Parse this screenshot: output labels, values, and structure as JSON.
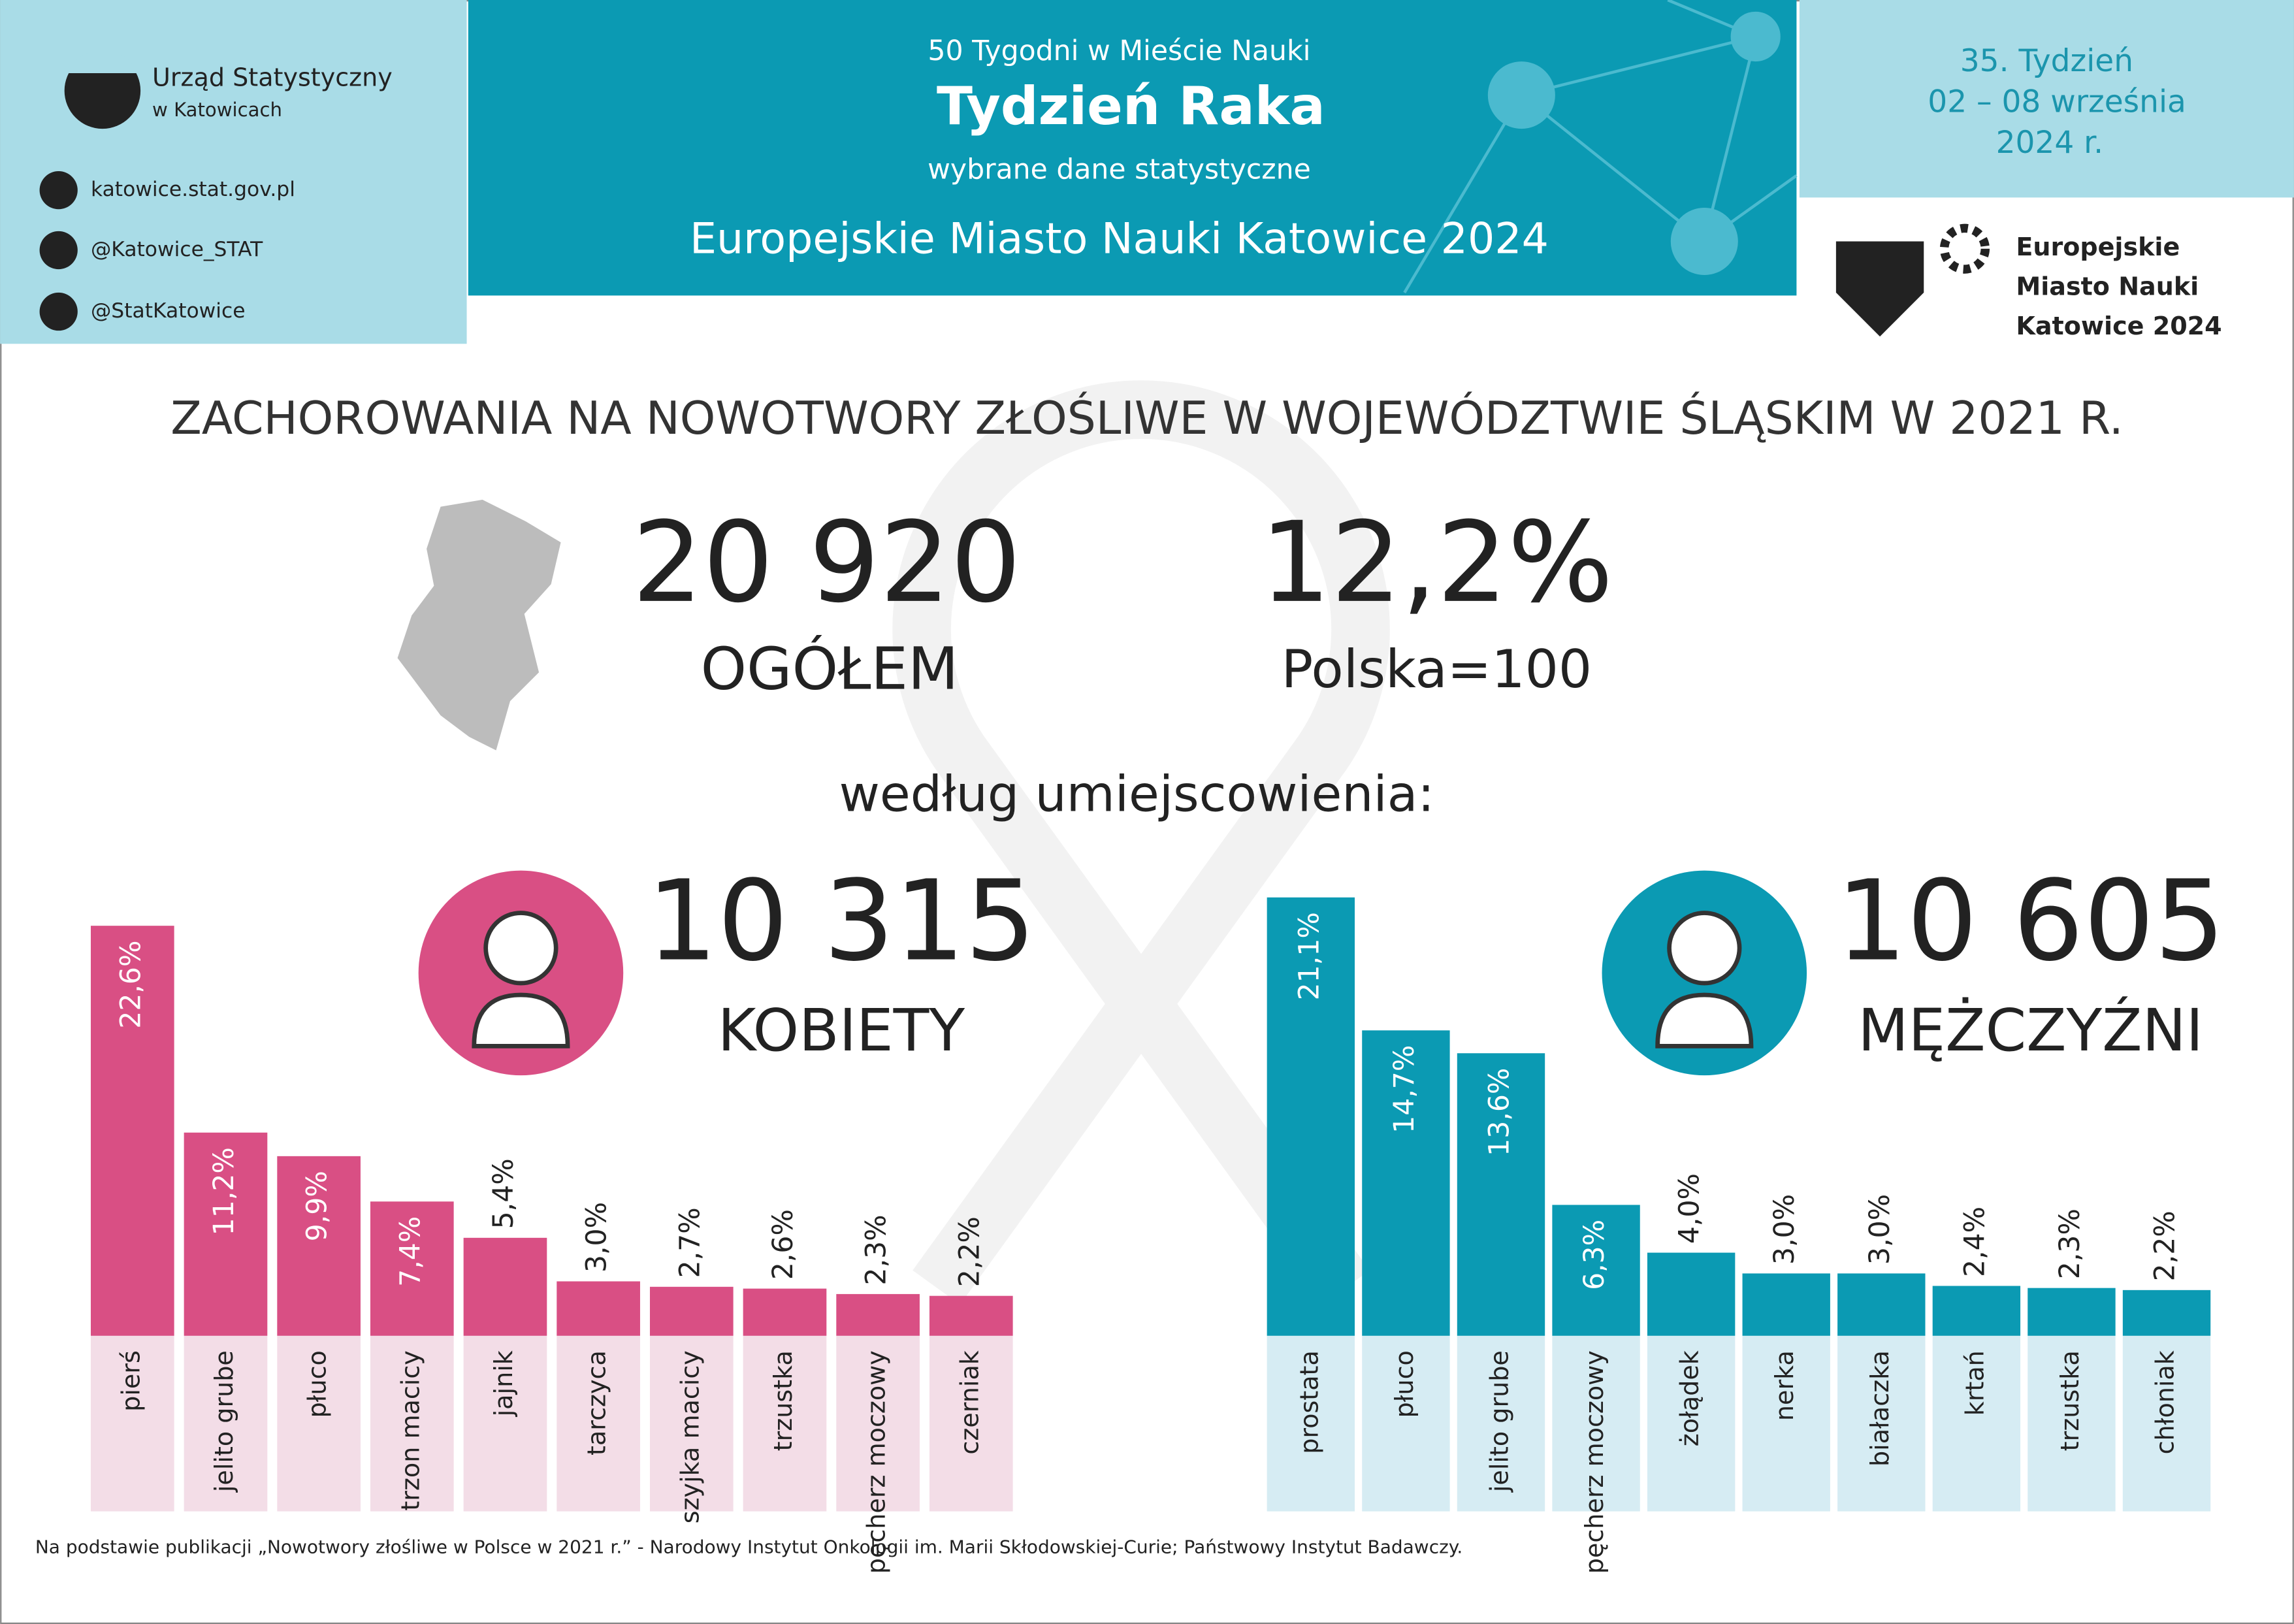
{
  "header": {
    "org": "Urząd Statystyczny",
    "org_sub": "w Katowicach",
    "links": [
      "katowice.stat.gov.pl",
      "@Katowice_STAT",
      "@StatKatowice"
    ],
    "series_title": "50 Tygodni w Mieście Nauki",
    "title": "Tydzień Raka",
    "subtitle": "wybrane dane statystyczne",
    "event": "Europejskie Miasto Nauki Katowice 2024",
    "week": "35. Tydzień",
    "dates": "02 – 08 września",
    "year": "2024 r.",
    "logo_lines": [
      "Europejskie",
      "Miasto Nauki",
      "Katowice 2024"
    ]
  },
  "main_title": "ZACHOROWANIA NA NOWOTWORY ZŁOŚLIWE W WOJEWÓDZTWIE ŚLĄSKIM W 2021 R.",
  "total": {
    "value": "20 920",
    "label": "OGÓŁEM"
  },
  "index": {
    "value": "12,2%",
    "label": "Polska=100"
  },
  "by_location": "według umiejscowienia:",
  "footnote": "Na podstawie publikacji „Nowotwory złośliwe w Polsce w 2021 r.” - Narodowy Instytut Onkologii im. Marii Skłodowskiej-Curie; Państwowy Instytut Badawczy.",
  "chart_data": [
    {
      "type": "bar",
      "title": "KOBIETY",
      "total": "10 315",
      "color": "#d94f84",
      "label_background": "#f3dde7",
      "categories": [
        "pierś",
        "jelito grube",
        "płuco",
        "trzon macicy",
        "jajnik",
        "tarczyca",
        "szyjka macicy",
        "trzustka",
        "pęcherz moczowy",
        "czerniak"
      ],
      "values": [
        22.6,
        11.2,
        9.9,
        7.4,
        5.4,
        3.0,
        2.7,
        2.6,
        2.3,
        2.2
      ],
      "value_labels": [
        "22,6%",
        "11,2%",
        "9,9%",
        "7,4%",
        "5,4%",
        "3,0%",
        "2,7%",
        "2,6%",
        "2,3%",
        "2,2%"
      ]
    },
    {
      "type": "bar",
      "title": "MĘŻCZYŹNI",
      "total": "10 605",
      "color": "#0b9ab3",
      "label_background": "#d6ecf3",
      "categories": [
        "prostata",
        "płuco",
        "jelito grube",
        "pęcherz moczowy",
        "żołądek",
        "nerka",
        "białaczka",
        "krtań",
        "trzustka",
        "chłoniak"
      ],
      "values": [
        21.1,
        14.7,
        13.6,
        6.3,
        4.0,
        3.0,
        3.0,
        2.4,
        2.3,
        2.2
      ],
      "value_labels": [
        "21,1%",
        "14,7%",
        "13,6%",
        "6,3%",
        "4,0%",
        "3,0%",
        "3,0%",
        "2,4%",
        "2,3%",
        "2,2%"
      ]
    }
  ]
}
